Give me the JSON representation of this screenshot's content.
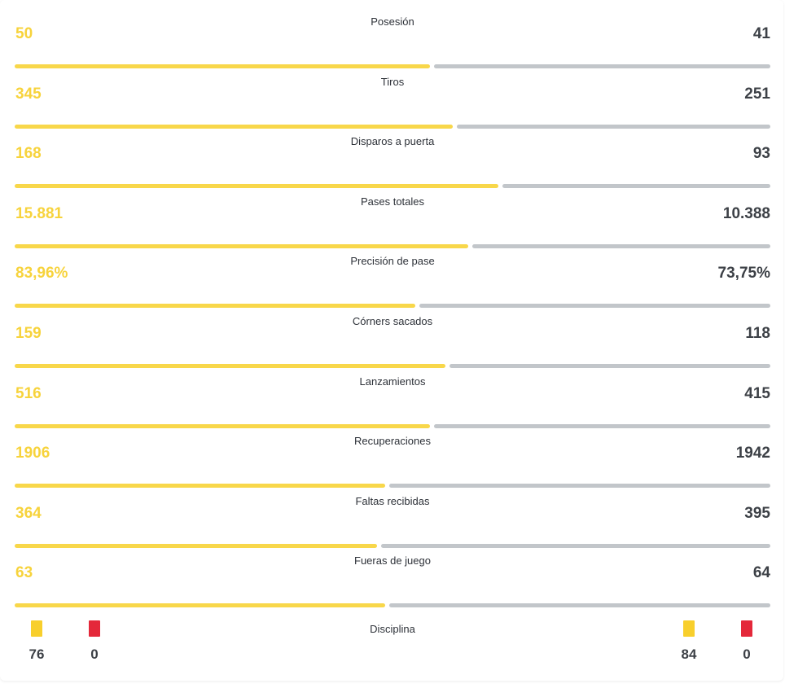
{
  "stats": [
    {
      "label": "Posesión",
      "home": "50",
      "away": "41",
      "home_share": 0.55
    },
    {
      "label": "Tiros",
      "home": "345",
      "away": "251",
      "home_share": 0.58
    },
    {
      "label": "Disparos a puerta",
      "home": "168",
      "away": "93",
      "home_share": 0.64
    },
    {
      "label": "Pases totales",
      "home": "15.881",
      "away": "10.388",
      "home_share": 0.6
    },
    {
      "label": "Precisión de pase",
      "home": "83,96%",
      "away": "73,75%",
      "home_share": 0.53
    },
    {
      "label": "Córners sacados",
      "home": "159",
      "away": "118",
      "home_share": 0.57
    },
    {
      "label": "Lanzamientos",
      "home": "516",
      "away": "415",
      "home_share": 0.55
    },
    {
      "label": "Recuperaciones",
      "home": "1906",
      "away": "1942",
      "home_share": 0.49
    },
    {
      "label": "Faltas recibidas",
      "home": "364",
      "away": "395",
      "home_share": 0.48
    },
    {
      "label": "Fueras de juego",
      "home": "63",
      "away": "64",
      "home_share": 0.49
    }
  ],
  "discipline": {
    "label": "Disciplina",
    "home": {
      "yellow": "76",
      "red": "0"
    },
    "away": {
      "yellow": "84",
      "red": "0"
    }
  },
  "colors": {
    "home": "#f8d74a",
    "away": "#c2c6ca",
    "yellow_card": "#f8cf2c",
    "red_card": "#e4283a"
  }
}
